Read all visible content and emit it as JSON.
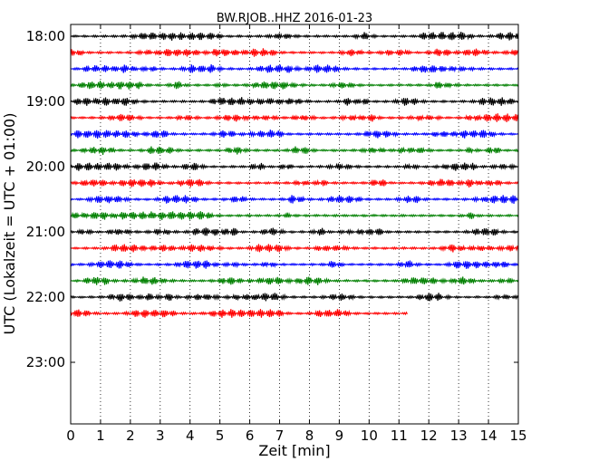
{
  "chart_data": {
    "type": "line",
    "title": "BW.RJOB..HHZ 2016-01-23",
    "xlabel": "Zeit  [min]",
    "ylabel": "UTC (Lokalzeit = UTC + 01:00)",
    "xlim": [
      0,
      15
    ],
    "x_ticks": [
      "0",
      "1",
      "2",
      "3",
      "4",
      "5",
      "6",
      "7",
      "8",
      "9",
      "10",
      "11",
      "12",
      "13",
      "14",
      "15"
    ],
    "y_ticks": [
      "18:00",
      "19:00",
      "20:00",
      "21:00",
      "22:00",
      "23:00"
    ],
    "grid": "vertical dotted lines at each minute",
    "row_interval_minutes": 15,
    "color_cycle": [
      "#000000",
      "#ff0000",
      "#0000ff",
      "#008000"
    ],
    "traces": [
      {
        "start": "18:00",
        "duration_min": 15,
        "color": "#000000"
      },
      {
        "start": "18:15",
        "duration_min": 15,
        "color": "#ff0000"
      },
      {
        "start": "18:30",
        "duration_min": 15,
        "color": "#0000ff"
      },
      {
        "start": "18:45",
        "duration_min": 15,
        "color": "#008000"
      },
      {
        "start": "19:00",
        "duration_min": 15,
        "color": "#000000"
      },
      {
        "start": "19:15",
        "duration_min": 15,
        "color": "#ff0000"
      },
      {
        "start": "19:30",
        "duration_min": 15,
        "color": "#0000ff"
      },
      {
        "start": "19:45",
        "duration_min": 15,
        "color": "#008000"
      },
      {
        "start": "20:00",
        "duration_min": 15,
        "color": "#000000"
      },
      {
        "start": "20:15",
        "duration_min": 15,
        "color": "#ff0000"
      },
      {
        "start": "20:30",
        "duration_min": 15,
        "color": "#0000ff"
      },
      {
        "start": "20:45",
        "duration_min": 15,
        "color": "#008000"
      },
      {
        "start": "21:00",
        "duration_min": 15,
        "color": "#000000"
      },
      {
        "start": "21:15",
        "duration_min": 15,
        "color": "#ff0000"
      },
      {
        "start": "21:30",
        "duration_min": 15,
        "color": "#0000ff"
      },
      {
        "start": "21:45",
        "duration_min": 15,
        "color": "#008000"
      },
      {
        "start": "22:00",
        "duration_min": 15,
        "color": "#000000"
      },
      {
        "start": "22:15",
        "duration_min": 11.3,
        "color": "#ff0000"
      }
    ]
  }
}
